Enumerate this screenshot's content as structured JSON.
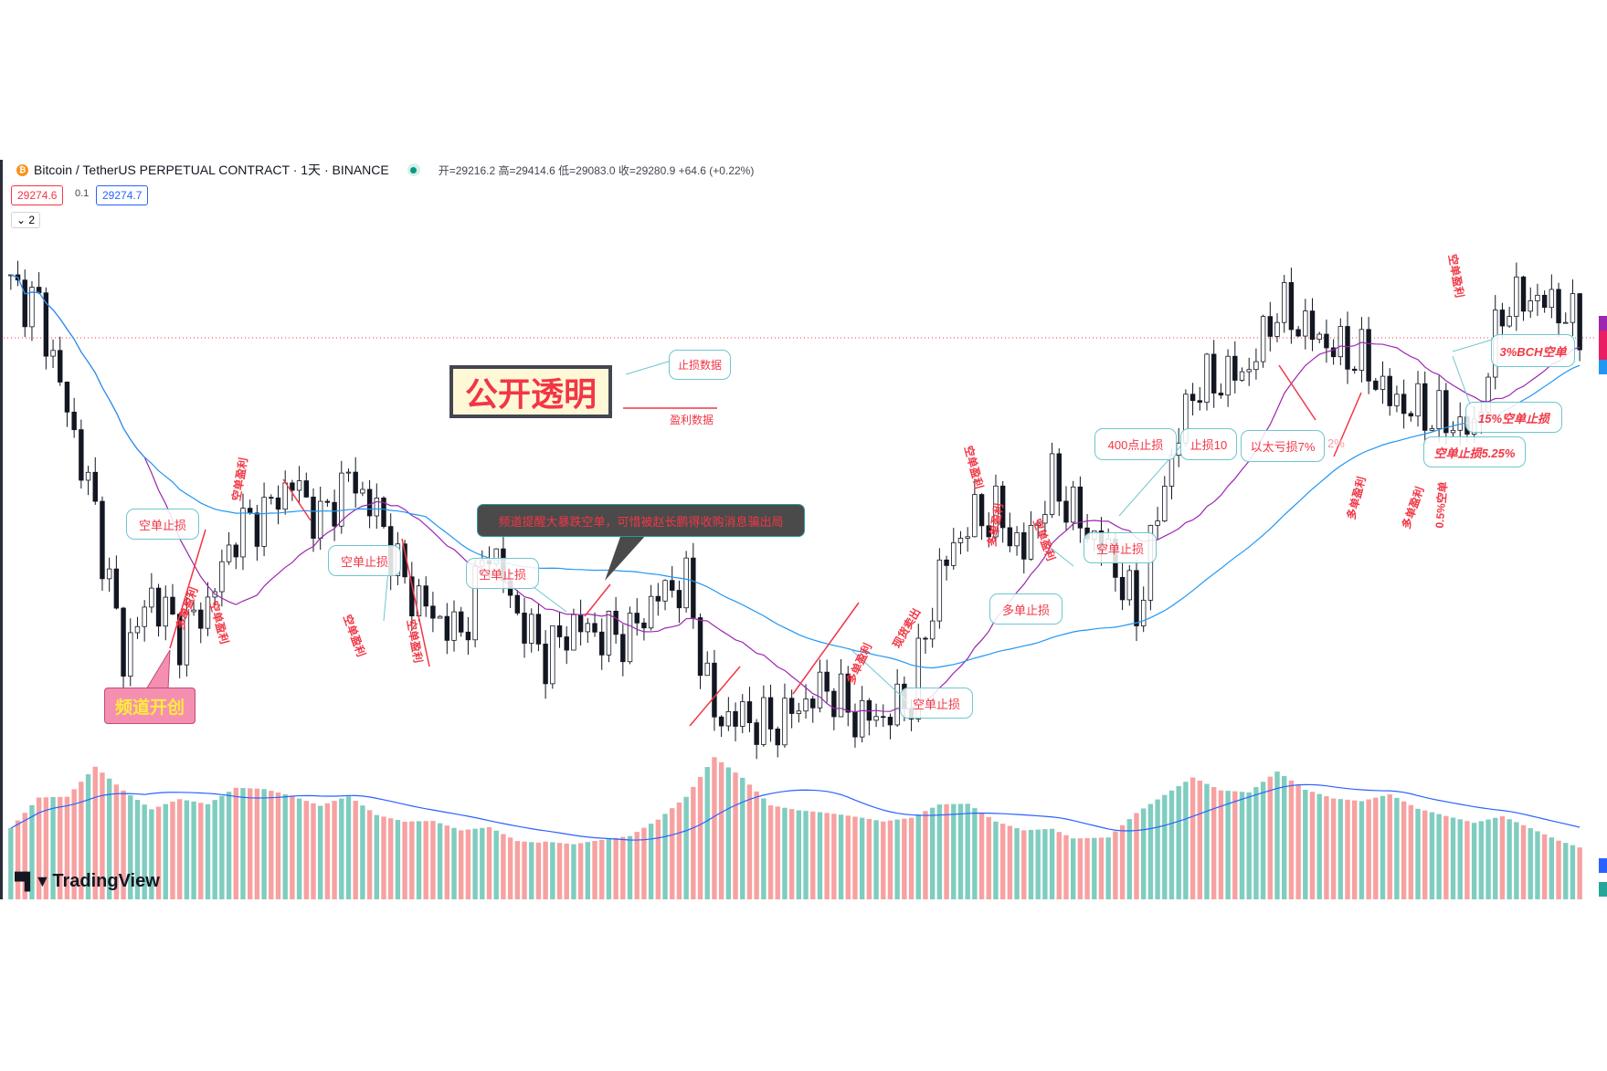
{
  "header": {
    "symbol": "Bitcoin / TetherUS PERPETUAL CONTRACT · 1天 · BINANCE",
    "ohlc": "开=29216.2 高=29414.6 低=29083.0 收=29280.9 +64.6 (+0.22%)",
    "bid": "29274.6",
    "spread": "0.1",
    "ask": "29274.7",
    "collapse_count": "2",
    "status_color": "#089981"
  },
  "brand": "TradingView",
  "colors": {
    "up_volume": "#7fcdbf",
    "down_volume": "#f7a1a1",
    "ma_fast": "#9c27b0",
    "ma_slow": "#2196f3",
    "annotation": "#f23645",
    "last_price_line": "#f23645"
  },
  "chart_data": {
    "type": "candlestick",
    "symbol": "BTCUSDT.P",
    "interval": "1天",
    "exchange": "BINANCE",
    "last_price": 29274.6,
    "closes": [
      30974,
      30294,
      26874,
      23474,
      18714,
      20774,
      19414,
      20434,
      22814,
      23474,
      24514,
      23154,
      24684,
      23474,
      21114,
      20074,
      19414,
      22474,
      20074,
      18714,
      19754,
      19414,
      19414,
      20774,
      21114,
      16694,
      16694,
      16354,
      17034,
      17714,
      16694,
      16694,
      17374,
      21454,
      23154,
      23474,
      22134,
      24514,
      23154,
      22134,
      20074,
      24514,
      27574,
      27914,
      28254,
      30294,
      29614,
      28934,
      28594,
      27234,
      26874,
      26534,
      26194,
      30294,
      30634,
      30294,
      29274
    ],
    "volume": [
      60,
      80,
      75,
      95,
      70,
      50,
      55,
      48,
      60,
      58,
      52,
      45,
      55,
      42,
      40,
      45,
      42,
      50,
      44,
      48,
      40,
      38,
      36,
      45,
      60,
      90,
      70,
      45,
      40,
      38,
      36,
      34,
      40,
      55,
      60,
      50,
      48,
      55,
      50,
      45,
      60,
      70,
      80,
      65,
      60,
      75,
      58,
      50,
      48,
      55,
      45,
      42,
      40,
      50,
      45,
      40,
      38
    ],
    "moving_averages": [
      "fast",
      "slow"
    ],
    "grid": false
  },
  "annotations": {
    "transparent": "公开透明",
    "sl_data": "止损数据",
    "tp_data": "盈利数据",
    "channel_start": "频道开创",
    "callout": "频道提醒大暴跌空单，可惜被赵长鹏得收购消息骗出局",
    "bubbles": [
      "空单止损",
      "空单止损",
      "空单止损",
      "空单止损",
      "空单止损",
      "多单止损",
      "400点止损",
      "止损10",
      "以太亏损7%",
      "2%",
      "15%空单止损",
      "空单止损5.25%",
      "3%BCH空单"
    ],
    "rotated": [
      "多单盈利",
      "空单盈利",
      "空单盈利",
      "空单盈利",
      "空单盈利",
      "多单盈利",
      "现货卖出",
      "空单盈利",
      "多单盈利",
      "空单盈利",
      "多单盈利",
      "空单盈利",
      "0.5%空单",
      "多单盈利"
    ]
  }
}
